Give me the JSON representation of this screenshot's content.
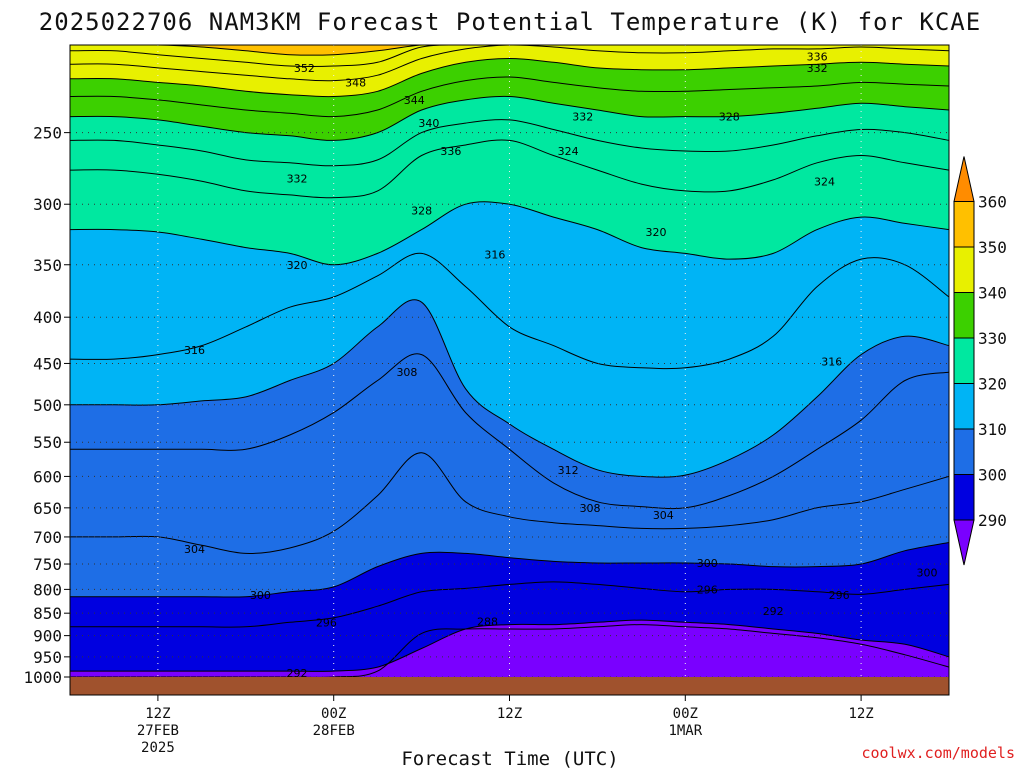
{
  "chart_data": {
    "type": "heatmap",
    "title": "2025022706 NAM3KM Forecast Potential Temperature (K) for KCAE",
    "xlabel": "Forecast Time (UTC)",
    "ylabel": "",
    "x_ticks": [
      {
        "hours": 6,
        "lines": [
          "12Z",
          "27FEB",
          "2025"
        ]
      },
      {
        "hours": 18,
        "lines": [
          "00Z",
          "28FEB"
        ]
      },
      {
        "hours": 30,
        "lines": [
          "12Z"
        ]
      },
      {
        "hours": 42,
        "lines": [
          "00Z",
          "1MAR"
        ]
      },
      {
        "hours": 54,
        "lines": [
          "12Z"
        ]
      }
    ],
    "xlim": [
      0,
      60
    ],
    "y_ticks": [
      250,
      300,
      350,
      400,
      450,
      500,
      550,
      600,
      650,
      700,
      750,
      800,
      850,
      900,
      950,
      1000
    ],
    "ylim": [
      200,
      1000
    ],
    "y_scale": "log-pressure",
    "grid": true,
    "colorbar": {
      "labels": [
        "290",
        "300",
        "310",
        "320",
        "330",
        "340",
        "350",
        "360"
      ],
      "levels": [
        {
          "from": 280,
          "to": 290,
          "color": "#7a00ff"
        },
        {
          "from": 290,
          "to": 300,
          "color": "#0000e0"
        },
        {
          "from": 300,
          "to": 310,
          "color": "#1e6ee6"
        },
        {
          "from": 310,
          "to": 320,
          "color": "#00b4f5"
        },
        {
          "from": 320,
          "to": 330,
          "color": "#00e8a0"
        },
        {
          "from": 330,
          "to": 340,
          "color": "#3cd000"
        },
        {
          "from": 340,
          "to": 350,
          "color": "#e8f000"
        },
        {
          "from": 350,
          "to": 360,
          "color": "#ffc000"
        },
        {
          "from": 360,
          "to": 370,
          "color": "#ff8c00"
        }
      ]
    },
    "ground_color": "#a0522d",
    "times": [
      0,
      3,
      6,
      9,
      12,
      15,
      18,
      21,
      24,
      27,
      30,
      33,
      36,
      39,
      42,
      45,
      48,
      51,
      54,
      57,
      60
    ],
    "isentropes": [
      {
        "theta": 288,
        "p": [
          1000,
          1000,
          1000,
          1000,
          1000,
          1000,
          1000,
          985,
          895,
          885,
          885,
          885,
          880,
          875,
          880,
          885,
          895,
          905,
          920,
          945,
          975
        ]
      },
      {
        "theta": 292,
        "p": [
          985,
          985,
          985,
          985,
          985,
          985,
          985,
          975,
          930,
          885,
          875,
          875,
          870,
          865,
          870,
          875,
          885,
          895,
          910,
          920,
          950
        ]
      },
      {
        "theta": 296,
        "p": [
          880,
          880,
          880,
          880,
          880,
          870,
          860,
          835,
          805,
          798,
          790,
          785,
          790,
          798,
          805,
          800,
          800,
          805,
          810,
          800,
          790
        ]
      },
      {
        "theta": 300,
        "p": [
          815,
          815,
          815,
          815,
          815,
          805,
          795,
          755,
          730,
          730,
          738,
          745,
          748,
          748,
          748,
          750,
          755,
          755,
          750,
          725,
          710
        ]
      },
      {
        "theta": 304,
        "p": [
          700,
          700,
          700,
          715,
          730,
          720,
          690,
          630,
          565,
          640,
          665,
          675,
          680,
          685,
          685,
          680,
          670,
          650,
          640,
          620,
          600
        ]
      },
      {
        "theta": 308,
        "p": [
          560,
          560,
          560,
          560,
          560,
          540,
          510,
          470,
          440,
          510,
          560,
          610,
          640,
          648,
          650,
          630,
          600,
          560,
          520,
          470,
          460
        ]
      },
      {
        "theta": 312,
        "p": [
          500,
          500,
          500,
          495,
          490,
          470,
          450,
          410,
          385,
          480,
          525,
          560,
          590,
          600,
          598,
          575,
          540,
          490,
          440,
          420,
          430
        ]
      },
      {
        "theta": 316,
        "p": [
          445,
          445,
          440,
          430,
          410,
          390,
          380,
          360,
          340,
          370,
          410,
          430,
          450,
          455,
          455,
          445,
          420,
          370,
          345,
          350,
          380
        ]
      },
      {
        "theta": 320,
        "p": [
          320,
          320,
          322,
          328,
          335,
          340,
          350,
          340,
          320,
          300,
          300,
          310,
          320,
          335,
          340,
          345,
          340,
          320,
          310,
          315,
          320
        ]
      },
      {
        "theta": 324,
        "p": [
          275,
          275,
          278,
          283,
          290,
          293,
          295,
          290,
          265,
          258,
          255,
          265,
          275,
          285,
          290,
          290,
          282,
          270,
          265,
          270,
          275
        ]
      },
      {
        "theta": 328,
        "p": [
          255,
          255,
          258,
          262,
          268,
          270,
          272,
          268,
          250,
          244,
          242,
          248,
          255,
          260,
          262,
          262,
          258,
          252,
          248,
          250,
          255
        ]
      },
      {
        "theta": 332,
        "p": [
          240,
          240,
          242,
          246,
          250,
          252,
          255,
          250,
          236,
          230,
          228,
          232,
          236,
          240,
          240,
          240,
          238,
          235,
          232,
          234,
          236
        ]
      },
      {
        "theta": 336,
        "p": [
          228,
          228,
          230,
          233,
          236,
          238,
          240,
          236,
          225,
          219,
          217,
          220,
          223,
          225,
          225,
          224,
          223,
          222,
          220,
          221,
          222
        ]
      },
      {
        "theta": 340,
        "p": [
          218,
          218,
          220,
          222,
          225,
          227,
          228,
          225,
          215,
          209,
          207,
          209,
          212,
          213,
          213,
          212,
          211,
          210,
          209,
          210,
          211
        ]
      },
      {
        "theta": 344,
        "p": [
          210,
          210,
          212,
          214,
          216,
          218,
          219,
          216,
          207,
          202,
          200,
          201,
          203,
          204,
          204,
          203,
          202,
          202,
          201,
          202,
          203
        ]
      },
      {
        "theta": 348,
        "p": [
          203,
          203,
          205,
          207,
          209,
          211,
          211,
          209,
          201,
          200,
          200,
          200,
          200,
          200,
          200,
          200,
          200,
          200,
          200,
          200,
          200
        ]
      },
      {
        "theta": 352,
        "p": [
          200,
          200,
          200,
          201,
          203,
          205,
          205,
          203,
          200,
          200,
          200,
          200,
          200,
          200,
          200,
          200,
          200,
          200,
          200,
          200,
          200
        ]
      }
    ],
    "contour_labels": [
      {
        "text": "352",
        "t": 16.0,
        "p": 212
      },
      {
        "text": "348",
        "t": 19.5,
        "p": 220
      },
      {
        "text": "344",
        "t": 23.5,
        "p": 230
      },
      {
        "text": "340",
        "t": 24.5,
        "p": 244
      },
      {
        "text": "336",
        "t": 26.0,
        "p": 262
      },
      {
        "text": "332",
        "t": 15.5,
        "p": 281
      },
      {
        "text": "328",
        "t": 24.0,
        "p": 305
      },
      {
        "text": "320",
        "t": 15.5,
        "p": 350
      },
      {
        "text": "316",
        "t": 29.0,
        "p": 341
      },
      {
        "text": "316",
        "t": 52.0,
        "p": 448
      },
      {
        "text": "316",
        "t": 8.5,
        "p": 435
      },
      {
        "text": "308",
        "t": 23.0,
        "p": 460
      },
      {
        "text": "312",
        "t": 34.0,
        "p": 590
      },
      {
        "text": "308",
        "t": 35.5,
        "p": 650
      },
      {
        "text": "304",
        "t": 40.5,
        "p": 662
      },
      {
        "text": "304",
        "t": 8.5,
        "p": 722
      },
      {
        "text": "300",
        "t": 43.5,
        "p": 748
      },
      {
        "text": "300",
        "t": 58.5,
        "p": 766
      },
      {
        "text": "300",
        "t": 13.0,
        "p": 812
      },
      {
        "text": "296",
        "t": 43.5,
        "p": 800
      },
      {
        "text": "296",
        "t": 52.5,
        "p": 812
      },
      {
        "text": "296",
        "t": 17.5,
        "p": 870
      },
      {
        "text": "292",
        "t": 48.0,
        "p": 845
      },
      {
        "text": "292",
        "t": 15.5,
        "p": 990
      },
      {
        "text": "288",
        "t": 28.5,
        "p": 868
      },
      {
        "text": "332",
        "t": 35.0,
        "p": 240
      },
      {
        "text": "324",
        "t": 34.0,
        "p": 262
      },
      {
        "text": "328",
        "t": 45.0,
        "p": 240
      },
      {
        "text": "324",
        "t": 51.5,
        "p": 283
      },
      {
        "text": "320",
        "t": 40.0,
        "p": 322
      },
      {
        "text": "336",
        "t": 51.0,
        "p": 206
      },
      {
        "text": "332",
        "t": 51.0,
        "p": 212
      }
    ]
  },
  "credit": "coolwx.com/models"
}
